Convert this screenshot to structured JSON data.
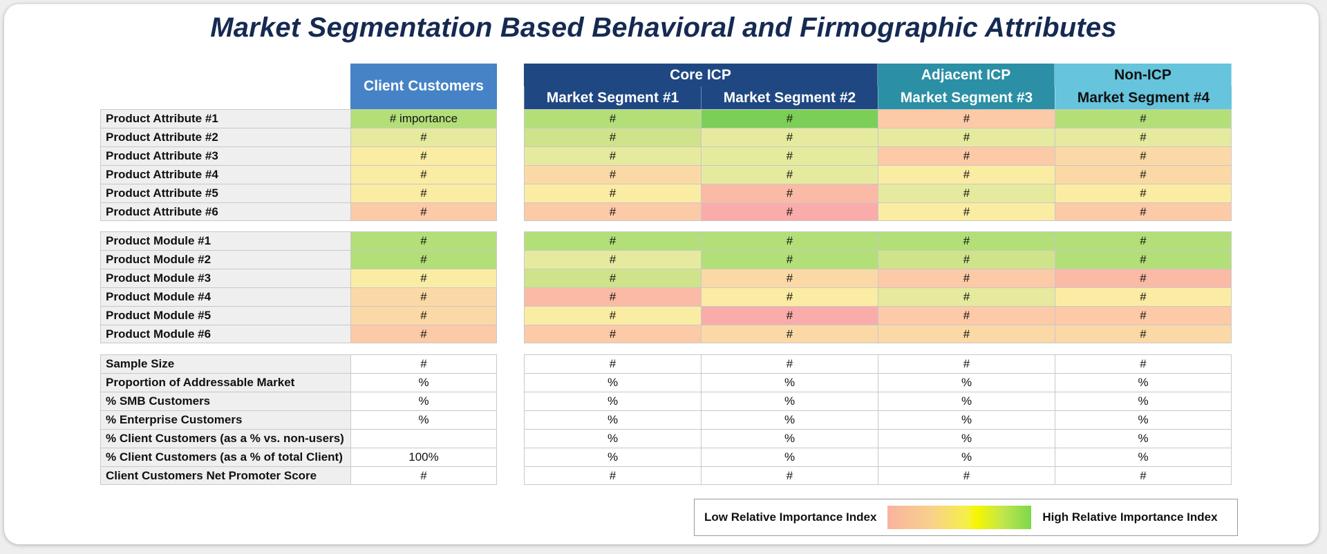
{
  "title": "Market Segmentation Based Behavioral and Firmographic Attributes",
  "colors": {
    "client_header": "#4583c6",
    "core_icp": "#1f4882",
    "adjacent_icp": "#2b8fa5",
    "non_icp": "#66c4dd",
    "row_label_bg": "#efefef",
    "heat": {
      "G2": "#7ccf56",
      "G": "#b3df79",
      "LG": "#cfe38b",
      "YG": "#e6ea9e",
      "Y": "#fbeca4",
      "O": "#fbd9a6",
      "PO": "#fccaa7",
      "S": "#fbbaa5",
      "P": "#f9acaa",
      "W": "#ffffff"
    }
  },
  "client_header": "Client Customers",
  "groups": [
    {
      "label": "Core ICP",
      "segments": [
        "Market Segment #1",
        "Market Segment #2"
      ]
    },
    {
      "label": "Adjacent ICP",
      "segments": [
        "Market Segment #3"
      ]
    },
    {
      "label": "Non-ICP",
      "segments": [
        "Market Segment #4"
      ]
    }
  ],
  "sections": [
    {
      "rows": [
        {
          "label": "Product Attribute #1",
          "values": [
            "# importance",
            "#",
            "#",
            "#",
            "#"
          ],
          "colors": [
            "G",
            "G",
            "G2",
            "PO",
            "G"
          ]
        },
        {
          "label": "Product Attribute #2",
          "values": [
            "#",
            "#",
            "#",
            "#",
            "#"
          ],
          "colors": [
            "YG",
            "LG",
            "YG",
            "YG",
            "YG"
          ]
        },
        {
          "label": "Product Attribute #3",
          "values": [
            "#",
            "#",
            "#",
            "#",
            "#"
          ],
          "colors": [
            "Y",
            "YG",
            "YG",
            "PO",
            "O"
          ]
        },
        {
          "label": "Product Attribute #4",
          "values": [
            "#",
            "#",
            "#",
            "#",
            "#"
          ],
          "colors": [
            "Y",
            "O",
            "YG",
            "Y",
            "O"
          ]
        },
        {
          "label": "Product Attribute #5",
          "values": [
            "#",
            "#",
            "#",
            "#",
            "#"
          ],
          "colors": [
            "Y",
            "Y",
            "S",
            "YG",
            "Y"
          ]
        },
        {
          "label": "Product Attribute #6",
          "values": [
            "#",
            "#",
            "#",
            "#",
            "#"
          ],
          "colors": [
            "PO",
            "PO",
            "P",
            "Y",
            "PO"
          ]
        }
      ]
    },
    {
      "rows": [
        {
          "label": "Product Module #1",
          "values": [
            "#",
            "#",
            "#",
            "#",
            "#"
          ],
          "colors": [
            "G",
            "G",
            "G",
            "G",
            "G"
          ]
        },
        {
          "label": "Product Module #2",
          "values": [
            "#",
            "#",
            "#",
            "#",
            "#"
          ],
          "colors": [
            "G",
            "YG",
            "G",
            "LG",
            "G"
          ]
        },
        {
          "label": "Product Module #3",
          "values": [
            "#",
            "#",
            "#",
            "#",
            "#"
          ],
          "colors": [
            "Y",
            "LG",
            "O",
            "PO",
            "S"
          ]
        },
        {
          "label": "Product Module #4",
          "values": [
            "#",
            "#",
            "#",
            "#",
            "#"
          ],
          "colors": [
            "O",
            "S",
            "Y",
            "YG",
            "Y"
          ]
        },
        {
          "label": "Product Module #5",
          "values": [
            "#",
            "#",
            "#",
            "#",
            "#"
          ],
          "colors": [
            "O",
            "Y",
            "P",
            "PO",
            "PO"
          ]
        },
        {
          "label": "Product Module #6",
          "values": [
            "#",
            "#",
            "#",
            "#",
            "#"
          ],
          "colors": [
            "PO",
            "PO",
            "O",
            "O",
            "O"
          ]
        }
      ]
    },
    {
      "rows": [
        {
          "label": "Sample Size",
          "values": [
            "#",
            "#",
            "#",
            "#",
            "#"
          ],
          "colors": [
            "W",
            "W",
            "W",
            "W",
            "W"
          ]
        },
        {
          "label": "Proportion of Addressable Market",
          "values": [
            "%",
            "%",
            "%",
            "%",
            "%"
          ],
          "colors": [
            "W",
            "W",
            "W",
            "W",
            "W"
          ]
        },
        {
          "label": "% SMB Customers",
          "values": [
            "%",
            "%",
            "%",
            "%",
            "%"
          ],
          "colors": [
            "W",
            "W",
            "W",
            "W",
            "W"
          ]
        },
        {
          "label": "% Enterprise Customers",
          "values": [
            "%",
            "%",
            "%",
            "%",
            "%"
          ],
          "colors": [
            "W",
            "W",
            "W",
            "W",
            "W"
          ]
        },
        {
          "label": "% Client Customers (as a % vs. non-users)",
          "values": [
            "",
            "%",
            "%",
            "%",
            "%"
          ],
          "colors": [
            "W",
            "W",
            "W",
            "W",
            "W"
          ]
        },
        {
          "label": "% Client Customers (as a % of total Client)",
          "values": [
            "100%",
            "%",
            "%",
            "%",
            "%"
          ],
          "colors": [
            "W",
            "W",
            "W",
            "W",
            "W"
          ]
        },
        {
          "label": "Client Customers Net Promoter Score",
          "values": [
            "#",
            "#",
            "#",
            "#",
            "#"
          ],
          "colors": [
            "W",
            "W",
            "W",
            "W",
            "W"
          ]
        }
      ]
    }
  ],
  "legend": {
    "low": "Low Relative Importance Index",
    "high": "High Relative Importance Index"
  },
  "chart_data": {
    "type": "table",
    "title": "Market Segmentation Based Behavioral and Firmographic Attributes",
    "columns": [
      "Client Customers",
      "Market Segment #1",
      "Market Segment #2",
      "Market Segment #3",
      "Market Segment #4"
    ],
    "column_groups": [
      {
        "label": "Core ICP",
        "columns": [
          "Market Segment #1",
          "Market Segment #2"
        ]
      },
      {
        "label": "Adjacent ICP",
        "columns": [
          "Market Segment #3"
        ]
      },
      {
        "label": "Non-ICP",
        "columns": [
          "Market Segment #4"
        ]
      }
    ],
    "rows": [
      "Product Attribute #1",
      "Product Attribute #2",
      "Product Attribute #3",
      "Product Attribute #4",
      "Product Attribute #5",
      "Product Attribute #6",
      "Product Module #1",
      "Product Module #2",
      "Product Module #3",
      "Product Module #4",
      "Product Module #5",
      "Product Module #6",
      "Sample Size",
      "Proportion of Addressable Market",
      "% SMB Customers",
      "% Enterprise Customers",
      "% Client Customers (as a % vs. non-users)",
      "% Client Customers (as a % of total Client)",
      "Client Customers Net Promoter Score"
    ],
    "legend": [
      "Low Relative Importance Index",
      "High Relative Importance Index"
    ]
  }
}
